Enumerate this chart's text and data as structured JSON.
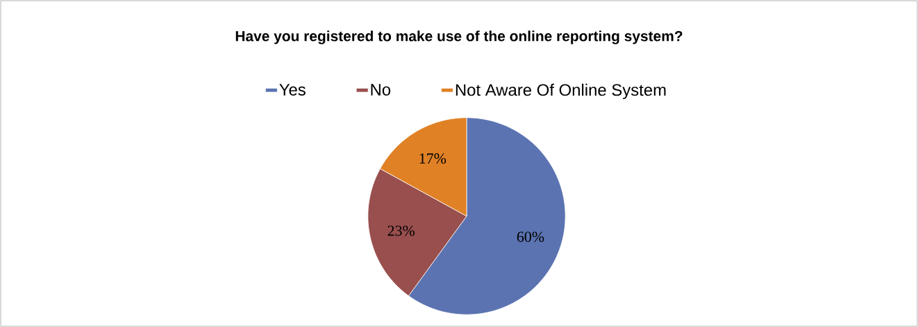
{
  "chart_data": {
    "type": "pie",
    "title": "Have you registered to make use of the online reporting system?",
    "categories": [
      "Yes",
      "No",
      "Not Aware Of Online System"
    ],
    "values": [
      60,
      23,
      17
    ],
    "colors": [
      "#5b73b1",
      "#984f4d",
      "#e08126"
    ],
    "value_labels": [
      "60%",
      "23%",
      "17%"
    ],
    "legend": "top"
  }
}
